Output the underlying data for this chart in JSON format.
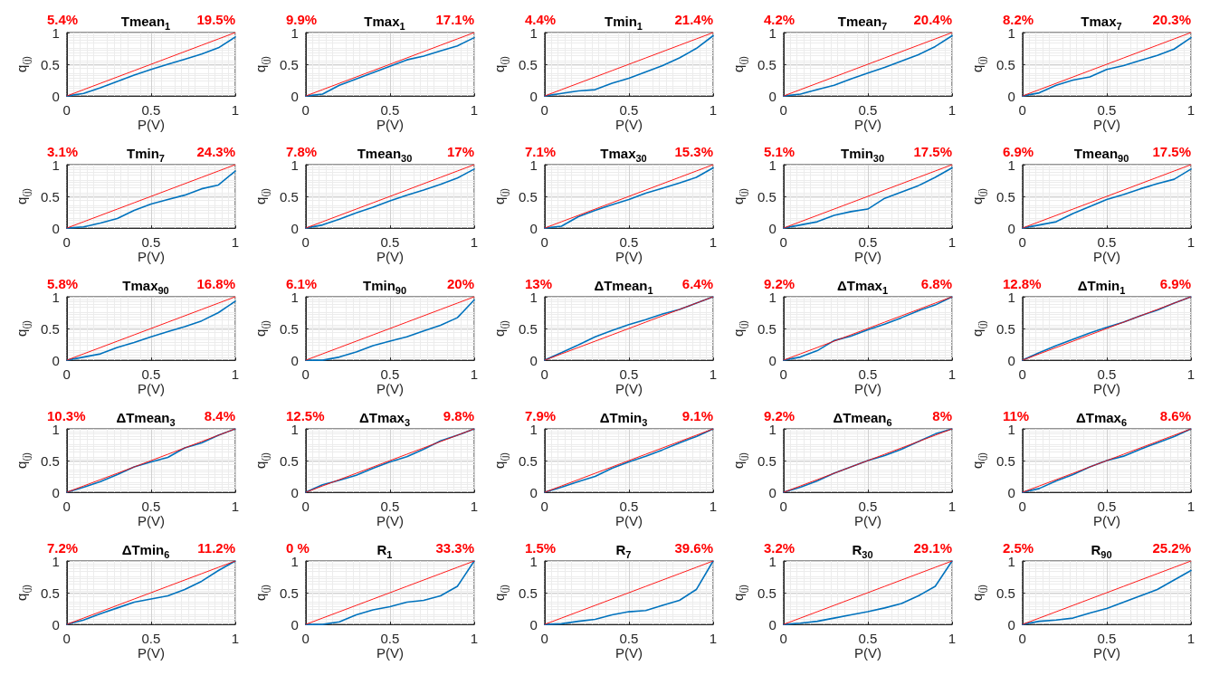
{
  "chart_data": [
    {
      "type": "line",
      "title": "Tmean$_{1}$",
      "xlabel": "P(V)",
      "ylabel": "q$_{(j)}$",
      "x": [
        0,
        0.1,
        0.2,
        0.3,
        0.4,
        0.5,
        0.6,
        0.7,
        0.8,
        0.9,
        1
      ],
      "xlim": [
        0,
        1
      ],
      "ylim": [
        0,
        1
      ],
      "xticks": [
        0,
        0.5,
        1
      ],
      "yticks": [
        0,
        0.5,
        1
      ],
      "grid": true,
      "annotations": [
        "5.4%",
        "19.5%"
      ],
      "series": [
        {
          "color": "#0072bd",
          "values": [
            0,
            0.04,
            0.13,
            0.23,
            0.33,
            0.42,
            0.5,
            0.58,
            0.66,
            0.76,
            0.93
          ]
        },
        {
          "color": "#ff0000",
          "values": [
            0,
            0.1,
            0.2,
            0.3,
            0.4,
            0.5,
            0.6,
            0.7,
            0.8,
            0.9,
            1
          ]
        }
      ]
    },
    {
      "type": "line",
      "title": "Tmax$_{1}$",
      "xlabel": "P(V)",
      "ylabel": "q$_{(j)}$",
      "x": [
        0,
        0.1,
        0.2,
        0.3,
        0.4,
        0.5,
        0.6,
        0.7,
        0.8,
        0.9,
        1
      ],
      "xlim": [
        0,
        1
      ],
      "ylim": [
        0,
        1
      ],
      "xticks": [
        0,
        0.5,
        1
      ],
      "yticks": [
        0,
        0.5,
        1
      ],
      "grid": true,
      "annotations": [
        "9.9%",
        "17.1%"
      ],
      "series": [
        {
          "color": "#0072bd",
          "values": [
            0,
            0.03,
            0.17,
            0.27,
            0.37,
            0.47,
            0.57,
            0.63,
            0.71,
            0.79,
            0.92
          ]
        },
        {
          "color": "#ff0000",
          "values": [
            0,
            0.1,
            0.2,
            0.3,
            0.4,
            0.5,
            0.6,
            0.7,
            0.8,
            0.9,
            1
          ]
        }
      ]
    },
    {
      "type": "line",
      "title": "Tmin$_{1}$",
      "xlabel": "P(V)",
      "ylabel": "q$_{(j)}$",
      "x": [
        0,
        0.1,
        0.2,
        0.3,
        0.4,
        0.5,
        0.6,
        0.7,
        0.8,
        0.9,
        1
      ],
      "xlim": [
        0,
        1
      ],
      "ylim": [
        0,
        1
      ],
      "xticks": [
        0,
        0.5,
        1
      ],
      "yticks": [
        0,
        0.5,
        1
      ],
      "grid": true,
      "annotations": [
        "4.4%",
        "21.4%"
      ],
      "series": [
        {
          "color": "#0072bd",
          "values": [
            0,
            0.04,
            0.08,
            0.1,
            0.2,
            0.28,
            0.38,
            0.48,
            0.6,
            0.75,
            0.95
          ]
        },
        {
          "color": "#ff0000",
          "values": [
            0,
            0.1,
            0.2,
            0.3,
            0.4,
            0.5,
            0.6,
            0.7,
            0.8,
            0.9,
            1
          ]
        }
      ]
    },
    {
      "type": "line",
      "title": "Tmean$_{7}$",
      "xlabel": "P(V)",
      "ylabel": "q$_{(j)}$",
      "x": [
        0,
        0.1,
        0.2,
        0.3,
        0.4,
        0.5,
        0.6,
        0.7,
        0.8,
        0.9,
        1
      ],
      "xlim": [
        0,
        1
      ],
      "ylim": [
        0,
        1
      ],
      "xticks": [
        0,
        0.5,
        1
      ],
      "yticks": [
        0,
        0.5,
        1
      ],
      "grid": true,
      "annotations": [
        "4.2%",
        "20.4%"
      ],
      "series": [
        {
          "color": "#0072bd",
          "values": [
            0,
            0.03,
            0.1,
            0.17,
            0.27,
            0.36,
            0.45,
            0.55,
            0.65,
            0.78,
            0.95
          ]
        },
        {
          "color": "#ff0000",
          "values": [
            0,
            0.1,
            0.2,
            0.3,
            0.4,
            0.5,
            0.6,
            0.7,
            0.8,
            0.9,
            1
          ]
        }
      ]
    },
    {
      "type": "line",
      "title": "Tmax$_{7}$",
      "xlabel": "P(V)",
      "ylabel": "q$_{(j)}$",
      "x": [
        0,
        0.1,
        0.2,
        0.3,
        0.4,
        0.5,
        0.6,
        0.7,
        0.8,
        0.9,
        1
      ],
      "xlim": [
        0,
        1
      ],
      "ylim": [
        0,
        1
      ],
      "xticks": [
        0,
        0.5,
        1
      ],
      "yticks": [
        0,
        0.5,
        1
      ],
      "grid": true,
      "annotations": [
        "8.2%",
        "20.3%"
      ],
      "series": [
        {
          "color": "#0072bd",
          "values": [
            0,
            0.05,
            0.17,
            0.25,
            0.3,
            0.42,
            0.48,
            0.56,
            0.64,
            0.74,
            0.92
          ]
        },
        {
          "color": "#ff0000",
          "values": [
            0,
            0.1,
            0.2,
            0.3,
            0.4,
            0.5,
            0.6,
            0.7,
            0.8,
            0.9,
            1
          ]
        }
      ]
    },
    {
      "type": "line",
      "title": "Tmin$_{7}$",
      "xlabel": "P(V)",
      "ylabel": "q$_{(j)}$",
      "x": [
        0,
        0.1,
        0.2,
        0.3,
        0.4,
        0.5,
        0.6,
        0.7,
        0.8,
        0.9,
        1
      ],
      "xlim": [
        0,
        1
      ],
      "ylim": [
        0,
        1
      ],
      "xticks": [
        0,
        0.5,
        1
      ],
      "yticks": [
        0,
        0.5,
        1
      ],
      "grid": true,
      "annotations": [
        "3.1%",
        "24.3%"
      ],
      "series": [
        {
          "color": "#0072bd",
          "values": [
            0,
            0.02,
            0.08,
            0.15,
            0.28,
            0.38,
            0.45,
            0.52,
            0.62,
            0.68,
            0.9
          ]
        },
        {
          "color": "#ff0000",
          "values": [
            0,
            0.1,
            0.2,
            0.3,
            0.4,
            0.5,
            0.6,
            0.7,
            0.8,
            0.9,
            1
          ]
        }
      ]
    },
    {
      "type": "line",
      "title": "Tmean$_{30}$",
      "xlabel": "P(V)",
      "ylabel": "q$_{(j)}$",
      "x": [
        0,
        0.1,
        0.2,
        0.3,
        0.4,
        0.5,
        0.6,
        0.7,
        0.8,
        0.9,
        1
      ],
      "xlim": [
        0,
        1
      ],
      "ylim": [
        0,
        1
      ],
      "xticks": [
        0,
        0.5,
        1
      ],
      "yticks": [
        0,
        0.5,
        1
      ],
      "grid": true,
      "annotations": [
        "7.8%",
        "17%"
      ],
      "series": [
        {
          "color": "#0072bd",
          "values": [
            0,
            0.05,
            0.14,
            0.24,
            0.33,
            0.43,
            0.52,
            0.6,
            0.69,
            0.79,
            0.93
          ]
        },
        {
          "color": "#ff0000",
          "values": [
            0,
            0.1,
            0.2,
            0.3,
            0.4,
            0.5,
            0.6,
            0.7,
            0.8,
            0.9,
            1
          ]
        }
      ]
    },
    {
      "type": "line",
      "title": "Tmax$_{30}$",
      "xlabel": "P(V)",
      "ylabel": "q$_{(j)}$",
      "x": [
        0,
        0.1,
        0.2,
        0.3,
        0.4,
        0.5,
        0.6,
        0.7,
        0.8,
        0.9,
        1
      ],
      "xlim": [
        0,
        1
      ],
      "ylim": [
        0,
        1
      ],
      "xticks": [
        0,
        0.5,
        1
      ],
      "yticks": [
        0,
        0.5,
        1
      ],
      "grid": true,
      "annotations": [
        "7.1%",
        "15.3%"
      ],
      "series": [
        {
          "color": "#0072bd",
          "values": [
            0,
            0.03,
            0.18,
            0.28,
            0.37,
            0.45,
            0.55,
            0.63,
            0.71,
            0.8,
            0.95
          ]
        },
        {
          "color": "#ff0000",
          "values": [
            0,
            0.1,
            0.2,
            0.3,
            0.4,
            0.5,
            0.6,
            0.7,
            0.8,
            0.9,
            1
          ]
        }
      ]
    },
    {
      "type": "line",
      "title": "Tmin$_{30}$",
      "xlabel": "P(V)",
      "ylabel": "q$_{(j)}$",
      "x": [
        0,
        0.1,
        0.2,
        0.3,
        0.4,
        0.5,
        0.6,
        0.7,
        0.8,
        0.9,
        1
      ],
      "xlim": [
        0,
        1
      ],
      "ylim": [
        0,
        1
      ],
      "xticks": [
        0,
        0.5,
        1
      ],
      "yticks": [
        0,
        0.5,
        1
      ],
      "grid": true,
      "annotations": [
        "5.1%",
        "17.5%"
      ],
      "series": [
        {
          "color": "#0072bd",
          "values": [
            0,
            0.05,
            0.1,
            0.2,
            0.26,
            0.3,
            0.47,
            0.57,
            0.67,
            0.8,
            0.95
          ]
        },
        {
          "color": "#ff0000",
          "values": [
            0,
            0.1,
            0.2,
            0.3,
            0.4,
            0.5,
            0.6,
            0.7,
            0.8,
            0.9,
            1
          ]
        }
      ]
    },
    {
      "type": "line",
      "title": "Tmean$_{90}$",
      "xlabel": "P(V)",
      "ylabel": "q$_{(j)}$",
      "x": [
        0,
        0.1,
        0.2,
        0.3,
        0.4,
        0.5,
        0.6,
        0.7,
        0.8,
        0.9,
        1
      ],
      "xlim": [
        0,
        1
      ],
      "ylim": [
        0,
        1
      ],
      "xticks": [
        0,
        0.5,
        1
      ],
      "yticks": [
        0,
        0.5,
        1
      ],
      "grid": true,
      "annotations": [
        "6.9%",
        "17.5%"
      ],
      "series": [
        {
          "color": "#0072bd",
          "values": [
            0,
            0.05,
            0.1,
            0.23,
            0.34,
            0.45,
            0.53,
            0.62,
            0.7,
            0.77,
            0.93
          ]
        },
        {
          "color": "#ff0000",
          "values": [
            0,
            0.1,
            0.2,
            0.3,
            0.4,
            0.5,
            0.6,
            0.7,
            0.8,
            0.9,
            1
          ]
        }
      ]
    },
    {
      "type": "line",
      "title": "Tmax$_{90}$",
      "xlabel": "P(V)",
      "ylabel": "q$_{(j)}$",
      "x": [
        0,
        0.1,
        0.2,
        0.3,
        0.4,
        0.5,
        0.6,
        0.7,
        0.8,
        0.9,
        1
      ],
      "xlim": [
        0,
        1
      ],
      "ylim": [
        0,
        1
      ],
      "xticks": [
        0,
        0.5,
        1
      ],
      "yticks": [
        0,
        0.5,
        1
      ],
      "grid": true,
      "annotations": [
        "5.8%",
        "16.8%"
      ],
      "series": [
        {
          "color": "#0072bd",
          "values": [
            0,
            0.05,
            0.1,
            0.2,
            0.28,
            0.37,
            0.45,
            0.53,
            0.62,
            0.75,
            0.93
          ]
        },
        {
          "color": "#ff0000",
          "values": [
            0,
            0.1,
            0.2,
            0.3,
            0.4,
            0.5,
            0.6,
            0.7,
            0.8,
            0.9,
            1
          ]
        }
      ]
    },
    {
      "type": "line",
      "title": "Tmin$_{90}$",
      "xlabel": "P(V)",
      "ylabel": "q$_{(j)}$",
      "x": [
        0,
        0.1,
        0.2,
        0.3,
        0.4,
        0.5,
        0.6,
        0.7,
        0.8,
        0.9,
        1
      ],
      "xlim": [
        0,
        1
      ],
      "ylim": [
        0,
        1
      ],
      "xticks": [
        0,
        0.5,
        1
      ],
      "yticks": [
        0,
        0.5,
        1
      ],
      "grid": true,
      "annotations": [
        "6.1%",
        "20%"
      ],
      "series": [
        {
          "color": "#0072bd",
          "values": [
            0,
            0,
            0.05,
            0.13,
            0.23,
            0.3,
            0.37,
            0.46,
            0.55,
            0.67,
            0.95
          ]
        },
        {
          "color": "#ff0000",
          "values": [
            0,
            0.1,
            0.2,
            0.3,
            0.4,
            0.5,
            0.6,
            0.7,
            0.8,
            0.9,
            1
          ]
        }
      ]
    },
    {
      "type": "line",
      "title": "ΔTmean$_{1}$",
      "xlabel": "P(V)",
      "ylabel": "q$_{(j)}$",
      "x": [
        0,
        0.1,
        0.2,
        0.3,
        0.4,
        0.5,
        0.6,
        0.7,
        0.8,
        0.9,
        1
      ],
      "xlim": [
        0,
        1
      ],
      "ylim": [
        0,
        1
      ],
      "xticks": [
        0,
        0.5,
        1
      ],
      "yticks": [
        0,
        0.5,
        1
      ],
      "grid": true,
      "annotations": [
        "13%",
        "6.4%"
      ],
      "series": [
        {
          "color": "#0072bd",
          "values": [
            0,
            0.12,
            0.24,
            0.37,
            0.47,
            0.56,
            0.64,
            0.73,
            0.8,
            0.9,
            1
          ]
        },
        {
          "color": "#ff0000",
          "values": [
            0,
            0.1,
            0.2,
            0.3,
            0.4,
            0.5,
            0.6,
            0.7,
            0.8,
            0.9,
            1
          ]
        }
      ]
    },
    {
      "type": "line",
      "title": "ΔTmax$_{1}$",
      "xlabel": "P(V)",
      "ylabel": "q$_{(j)}$",
      "x": [
        0,
        0.1,
        0.2,
        0.3,
        0.4,
        0.5,
        0.6,
        0.7,
        0.8,
        0.9,
        1
      ],
      "xlim": [
        0,
        1
      ],
      "ylim": [
        0,
        1
      ],
      "xticks": [
        0,
        0.5,
        1
      ],
      "yticks": [
        0,
        0.5,
        1
      ],
      "grid": true,
      "annotations": [
        "9.2%",
        "6.8%"
      ],
      "series": [
        {
          "color": "#0072bd",
          "values": [
            0,
            0.05,
            0.15,
            0.31,
            0.38,
            0.48,
            0.57,
            0.67,
            0.78,
            0.87,
            1
          ]
        },
        {
          "color": "#ff0000",
          "values": [
            0,
            0.1,
            0.2,
            0.3,
            0.4,
            0.5,
            0.6,
            0.7,
            0.8,
            0.9,
            1
          ]
        }
      ]
    },
    {
      "type": "line",
      "title": "ΔTmin$_{1}$",
      "xlabel": "P(V)",
      "ylabel": "q$_{(j)}$",
      "x": [
        0,
        0.1,
        0.2,
        0.3,
        0.4,
        0.5,
        0.6,
        0.7,
        0.8,
        0.9,
        1
      ],
      "xlim": [
        0,
        1
      ],
      "ylim": [
        0,
        1
      ],
      "xticks": [
        0,
        0.5,
        1
      ],
      "yticks": [
        0,
        0.5,
        1
      ],
      "grid": true,
      "annotations": [
        "12.8%",
        "6.9%"
      ],
      "series": [
        {
          "color": "#0072bd",
          "values": [
            0,
            0.12,
            0.23,
            0.33,
            0.43,
            0.52,
            0.6,
            0.7,
            0.79,
            0.9,
            1
          ]
        },
        {
          "color": "#ff0000",
          "values": [
            0,
            0.1,
            0.2,
            0.3,
            0.4,
            0.5,
            0.6,
            0.7,
            0.8,
            0.9,
            1
          ]
        }
      ]
    },
    {
      "type": "line",
      "title": "ΔTmean$_{3}$",
      "xlabel": "P(V)",
      "ylabel": "q$_{(j)}$",
      "x": [
        0,
        0.1,
        0.2,
        0.3,
        0.4,
        0.5,
        0.6,
        0.7,
        0.8,
        0.9,
        1
      ],
      "xlim": [
        0,
        1
      ],
      "ylim": [
        0,
        1
      ],
      "xticks": [
        0,
        0.5,
        1
      ],
      "yticks": [
        0,
        0.5,
        1
      ],
      "grid": true,
      "annotations": [
        "10.3%",
        "8.4%"
      ],
      "series": [
        {
          "color": "#0072bd",
          "values": [
            0,
            0.08,
            0.17,
            0.28,
            0.4,
            0.48,
            0.55,
            0.7,
            0.78,
            0.9,
            1
          ]
        },
        {
          "color": "#ff0000",
          "values": [
            0,
            0.1,
            0.2,
            0.3,
            0.4,
            0.5,
            0.6,
            0.7,
            0.8,
            0.9,
            1
          ]
        }
      ]
    },
    {
      "type": "line",
      "title": "ΔTmax$_{3}$",
      "xlabel": "P(V)",
      "ylabel": "q$_{(j)}$",
      "x": [
        0,
        0.1,
        0.2,
        0.3,
        0.4,
        0.5,
        0.6,
        0.7,
        0.8,
        0.9,
        1
      ],
      "xlim": [
        0,
        1
      ],
      "ylim": [
        0,
        1
      ],
      "xticks": [
        0,
        0.5,
        1
      ],
      "yticks": [
        0,
        0.5,
        1
      ],
      "grid": true,
      "annotations": [
        "12.5%",
        "9.8%"
      ],
      "series": [
        {
          "color": "#0072bd",
          "values": [
            0,
            0.12,
            0.19,
            0.27,
            0.38,
            0.48,
            0.56,
            0.68,
            0.81,
            0.9,
            1
          ]
        },
        {
          "color": "#ff0000",
          "values": [
            0,
            0.1,
            0.2,
            0.3,
            0.4,
            0.5,
            0.6,
            0.7,
            0.8,
            0.9,
            1
          ]
        }
      ]
    },
    {
      "type": "line",
      "title": "ΔTmin$_{3}$",
      "xlabel": "P(V)",
      "ylabel": "q$_{(j)}$",
      "x": [
        0,
        0.1,
        0.2,
        0.3,
        0.4,
        0.5,
        0.6,
        0.7,
        0.8,
        0.9,
        1
      ],
      "xlim": [
        0,
        1
      ],
      "ylim": [
        0,
        1
      ],
      "xticks": [
        0,
        0.5,
        1
      ],
      "yticks": [
        0,
        0.5,
        1
      ],
      "grid": true,
      "annotations": [
        "7.9%",
        "9.1%"
      ],
      "series": [
        {
          "color": "#0072bd",
          "values": [
            0,
            0.08,
            0.17,
            0.25,
            0.38,
            0.48,
            0.57,
            0.67,
            0.78,
            0.88,
            1
          ]
        },
        {
          "color": "#ff0000",
          "values": [
            0,
            0.1,
            0.2,
            0.3,
            0.4,
            0.5,
            0.6,
            0.7,
            0.8,
            0.9,
            1
          ]
        }
      ]
    },
    {
      "type": "line",
      "title": "ΔTmean$_{6}$",
      "xlabel": "P(V)",
      "ylabel": "q$_{(j)}$",
      "x": [
        0,
        0.1,
        0.2,
        0.3,
        0.4,
        0.5,
        0.6,
        0.7,
        0.8,
        0.9,
        1
      ],
      "xlim": [
        0,
        1
      ],
      "ylim": [
        0,
        1
      ],
      "xticks": [
        0,
        0.5,
        1
      ],
      "yticks": [
        0,
        0.5,
        1
      ],
      "grid": true,
      "annotations": [
        "9.2%",
        "8%"
      ],
      "series": [
        {
          "color": "#0072bd",
          "values": [
            0,
            0.08,
            0.18,
            0.3,
            0.4,
            0.5,
            0.58,
            0.68,
            0.8,
            0.92,
            1
          ]
        },
        {
          "color": "#ff0000",
          "values": [
            0,
            0.1,
            0.2,
            0.3,
            0.4,
            0.5,
            0.6,
            0.7,
            0.8,
            0.9,
            1
          ]
        }
      ]
    },
    {
      "type": "line",
      "title": "ΔTmax$_{6}$",
      "xlabel": "P(V)",
      "ylabel": "q$_{(j)}$",
      "x": [
        0,
        0.1,
        0.2,
        0.3,
        0.4,
        0.5,
        0.6,
        0.7,
        0.8,
        0.9,
        1
      ],
      "xlim": [
        0,
        1
      ],
      "ylim": [
        0,
        1
      ],
      "xticks": [
        0,
        0.5,
        1
      ],
      "yticks": [
        0,
        0.5,
        1
      ],
      "grid": true,
      "annotations": [
        "11%",
        "8.6%"
      ],
      "series": [
        {
          "color": "#0072bd",
          "values": [
            0,
            0.06,
            0.18,
            0.28,
            0.4,
            0.5,
            0.57,
            0.68,
            0.78,
            0.88,
            1
          ]
        },
        {
          "color": "#ff0000",
          "values": [
            0,
            0.1,
            0.2,
            0.3,
            0.4,
            0.5,
            0.6,
            0.7,
            0.8,
            0.9,
            1
          ]
        }
      ]
    },
    {
      "type": "line",
      "title": "ΔTmin$_{6}$",
      "xlabel": "P(V)",
      "ylabel": "q$_{(j)}$",
      "x": [
        0,
        0.1,
        0.2,
        0.3,
        0.4,
        0.5,
        0.6,
        0.7,
        0.8,
        0.9,
        1
      ],
      "xlim": [
        0,
        1
      ],
      "ylim": [
        0,
        1
      ],
      "xticks": [
        0,
        0.5,
        1
      ],
      "yticks": [
        0,
        0.5,
        1
      ],
      "grid": true,
      "annotations": [
        "7.2%",
        "11.2%"
      ],
      "series": [
        {
          "color": "#0072bd",
          "values": [
            0,
            0.07,
            0.17,
            0.26,
            0.35,
            0.4,
            0.45,
            0.55,
            0.68,
            0.85,
            1
          ]
        },
        {
          "color": "#ff0000",
          "values": [
            0,
            0.1,
            0.2,
            0.3,
            0.4,
            0.5,
            0.6,
            0.7,
            0.8,
            0.9,
            1
          ]
        }
      ]
    },
    {
      "type": "line",
      "title": "R$_{1}$",
      "xlabel": "P(V)",
      "ylabel": "q$_{(j)}$",
      "x": [
        0,
        0.1,
        0.2,
        0.3,
        0.4,
        0.5,
        0.6,
        0.7,
        0.8,
        0.9,
        1
      ],
      "xlim": [
        0,
        1
      ],
      "ylim": [
        0,
        1
      ],
      "xticks": [
        0,
        0.5,
        1
      ],
      "yticks": [
        0,
        0.5,
        1
      ],
      "grid": true,
      "annotations": [
        "0 %",
        "33.3%"
      ],
      "series": [
        {
          "color": "#0072bd",
          "values": [
            0,
            0,
            0.04,
            0.15,
            0.23,
            0.28,
            0.35,
            0.38,
            0.45,
            0.6,
            1
          ]
        },
        {
          "color": "#ff0000",
          "values": [
            0,
            0.1,
            0.2,
            0.3,
            0.4,
            0.5,
            0.6,
            0.7,
            0.8,
            0.9,
            1
          ]
        }
      ]
    },
    {
      "type": "line",
      "title": "R$_{7}$",
      "xlabel": "P(V)",
      "ylabel": "q$_{(j)}$",
      "x": [
        0,
        0.1,
        0.2,
        0.3,
        0.4,
        0.5,
        0.6,
        0.7,
        0.8,
        0.9,
        1
      ],
      "xlim": [
        0,
        1
      ],
      "ylim": [
        0,
        1
      ],
      "xticks": [
        0,
        0.5,
        1
      ],
      "yticks": [
        0,
        0.5,
        1
      ],
      "grid": true,
      "annotations": [
        "1.5%",
        "39.6%"
      ],
      "series": [
        {
          "color": "#0072bd",
          "values": [
            0,
            0.01,
            0.05,
            0.08,
            0.15,
            0.2,
            0.22,
            0.3,
            0.38,
            0.55,
            1
          ]
        },
        {
          "color": "#ff0000",
          "values": [
            0,
            0.1,
            0.2,
            0.3,
            0.4,
            0.5,
            0.6,
            0.7,
            0.8,
            0.9,
            1
          ]
        }
      ]
    },
    {
      "type": "line",
      "title": "R$_{30}$",
      "xlabel": "P(V)",
      "ylabel": "q$_{(j)}$",
      "x": [
        0,
        0.1,
        0.2,
        0.3,
        0.4,
        0.5,
        0.6,
        0.7,
        0.8,
        0.9,
        1
      ],
      "xlim": [
        0,
        1
      ],
      "ylim": [
        0,
        1
      ],
      "xticks": [
        0,
        0.5,
        1
      ],
      "yticks": [
        0,
        0.5,
        1
      ],
      "grid": true,
      "annotations": [
        "3.2%",
        "29.1%"
      ],
      "series": [
        {
          "color": "#0072bd",
          "values": [
            0,
            0.02,
            0.05,
            0.1,
            0.15,
            0.2,
            0.26,
            0.33,
            0.45,
            0.6,
            1
          ]
        },
        {
          "color": "#ff0000",
          "values": [
            0,
            0.1,
            0.2,
            0.3,
            0.4,
            0.5,
            0.6,
            0.7,
            0.8,
            0.9,
            1
          ]
        }
      ]
    },
    {
      "type": "line",
      "title": "R$_{90}$",
      "xlabel": "P(V)",
      "ylabel": "q$_{(j)}$",
      "x": [
        0,
        0.1,
        0.2,
        0.3,
        0.4,
        0.5,
        0.6,
        0.7,
        0.8,
        0.9,
        1
      ],
      "xlim": [
        0,
        1
      ],
      "ylim": [
        0,
        1
      ],
      "xticks": [
        0,
        0.5,
        1
      ],
      "yticks": [
        0,
        0.5,
        1
      ],
      "grid": true,
      "annotations": [
        "2.5%",
        "25.2%"
      ],
      "series": [
        {
          "color": "#0072bd",
          "values": [
            0,
            0.05,
            0.07,
            0.1,
            0.18,
            0.25,
            0.35,
            0.45,
            0.55,
            0.7,
            0.85
          ]
        },
        {
          "color": "#ff0000",
          "values": [
            0,
            0.1,
            0.2,
            0.3,
            0.4,
            0.5,
            0.6,
            0.7,
            0.8,
            0.9,
            1
          ]
        }
      ]
    }
  ]
}
